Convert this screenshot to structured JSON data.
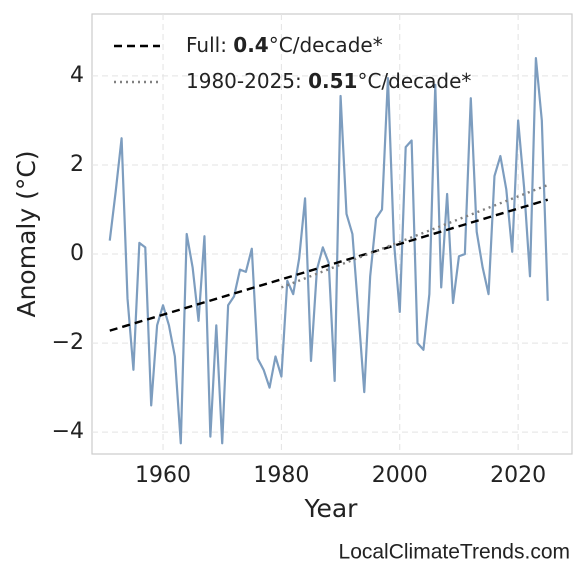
{
  "chart_data": {
    "type": "line",
    "x_label": "Year",
    "y_label": "Anomaly (°C)",
    "source": "LocalClimateTrends.com",
    "xlim": [
      1948,
      2029.1
    ],
    "ylim": [
      -4.49,
      5.39
    ],
    "xticks": [
      1960,
      1980,
      2000,
      2020
    ],
    "yticks": [
      {
        "value": -4,
        "label": "−4"
      },
      {
        "value": -2,
        "label": "−2"
      },
      0,
      2,
      4
    ],
    "grid": true,
    "legend": "upper left",
    "series": [
      {
        "color": "#7d9dbf",
        "style": "solid",
        "x": [
          1951,
          1952,
          1953,
          1954,
          1955,
          1956,
          1957,
          1958,
          1959,
          1960,
          1961,
          1962,
          1963,
          1964,
          1965,
          1966,
          1967,
          1968,
          1969,
          1970,
          1971,
          1972,
          1973,
          1974,
          1975,
          1976,
          1977,
          1978,
          1979,
          1980,
          1981,
          1982,
          1983,
          1984,
          1985,
          1986,
          1987,
          1988,
          1989,
          1990,
          1991,
          1992,
          1993,
          1994,
          1995,
          1996,
          1997,
          1998,
          1999,
          2000,
          2001,
          2002,
          2003,
          2004,
          2005,
          2006,
          2007,
          2008,
          2009,
          2010,
          2011,
          2012,
          2013,
          2014,
          2015,
          2016,
          2017,
          2018,
          2019,
          2020,
          2021,
          2022,
          2023,
          2024,
          2025
        ],
        "values": [
          0.3,
          1.4,
          2.6,
          -1.0,
          -2.6,
          0.25,
          0.15,
          -3.4,
          -1.6,
          -1.15,
          -1.6,
          -2.3,
          -4.25,
          0.45,
          -0.3,
          -1.5,
          0.4,
          -4.1,
          -1.6,
          -4.25,
          -1.15,
          -0.95,
          -0.35,
          -0.4,
          0.12,
          -2.35,
          -2.6,
          -3.0,
          -2.3,
          -2.75,
          -0.6,
          -0.9,
          -0.1,
          1.25,
          -2.4,
          -0.35,
          0.15,
          -0.2,
          -2.85,
          3.55,
          0.9,
          0.45,
          -1.3,
          -3.1,
          -0.5,
          0.8,
          1.0,
          3.95,
          0.3,
          -1.3,
          2.4,
          2.55,
          -2.0,
          -2.15,
          -0.9,
          3.8,
          -0.75,
          1.35,
          -1.1,
          -0.05,
          0.0,
          3.5,
          0.5,
          -0.3,
          -0.9,
          1.75,
          2.2,
          1.45,
          0.05,
          3.0,
          1.5,
          -0.5,
          4.4,
          3.0,
          -1.05
        ]
      },
      {
        "name": [
          "Full: ",
          "0.4",
          "°C/decade*"
        ],
        "color": "#000000",
        "style": "dashed",
        "x": [
          1951,
          2025
        ],
        "values": [
          -1.72,
          1.22
        ]
      },
      {
        "name": [
          "1980-2025: ",
          "0.51",
          "°C/decade*"
        ],
        "color": "#808080",
        "style": "dotted",
        "x": [
          1980,
          2025
        ],
        "values": [
          -0.75,
          1.55
        ]
      }
    ]
  }
}
